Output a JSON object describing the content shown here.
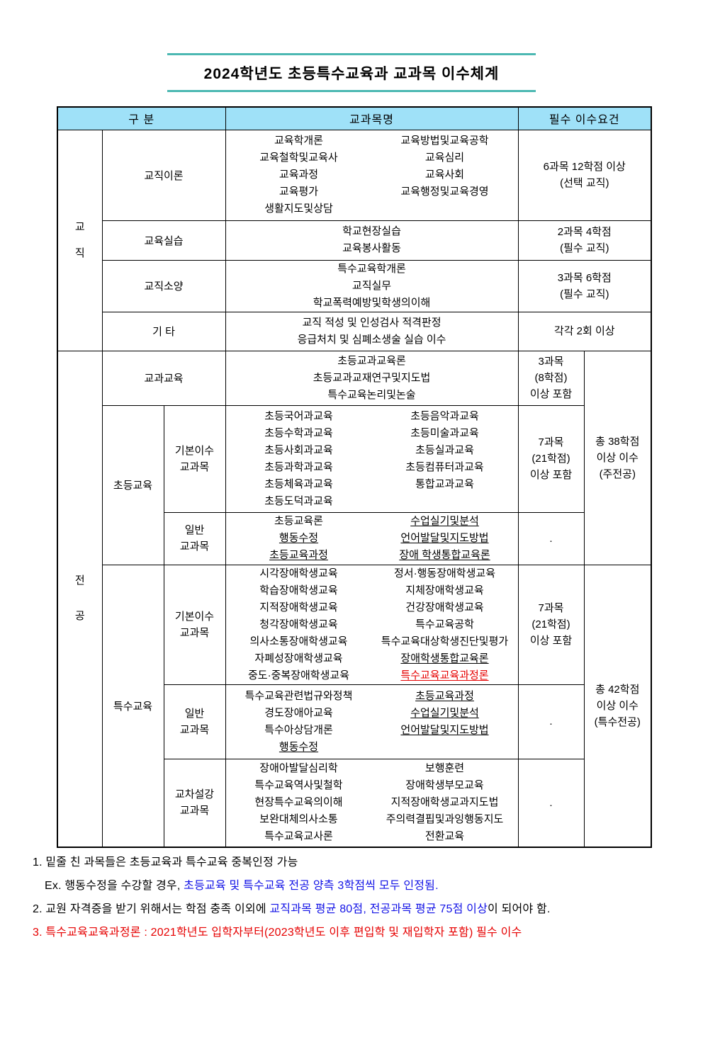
{
  "title": "2024학년도 초등특수교육과 교과목 이수체계",
  "colors": {
    "title_rule": "#4cb8b2",
    "header_bg": "#9fe1f8",
    "highlight_blue": "#1212e6",
    "highlight_red": "#e60000"
  },
  "table": {
    "headers": {
      "category": "구  분",
      "course": "교과목명",
      "requirement": "필수 이수요건"
    },
    "groups": {
      "teaching": "교\n직",
      "major": "전\n공"
    },
    "rows": {
      "theory": {
        "label": "교직이론",
        "left": [
          {
            "t": "교육학개론"
          },
          {
            "t": "교육철학및교육사"
          },
          {
            "t": "교육과정"
          },
          {
            "t": "교육평가"
          },
          {
            "t": "생활지도및상담"
          }
        ],
        "right": [
          {
            "t": "교육방법및교육공학"
          },
          {
            "t": "교육심리"
          },
          {
            "t": "교육사회"
          },
          {
            "t": "교육행정및교육경영"
          }
        ],
        "req": "6과목 12학점 이상\n(선택 교직)"
      },
      "practice": {
        "label": "교육실습",
        "center": [
          {
            "t": "학교현장실습"
          },
          {
            "t": "교육봉사활동"
          }
        ],
        "req": "2과목 4학점\n(필수 교직)"
      },
      "ethics": {
        "label": "교직소양",
        "center": [
          {
            "t": "특수교육학개론"
          },
          {
            "t": "교직실무"
          },
          {
            "t": "학교폭력예방및학생의이해"
          }
        ],
        "req": "3과목 6학점\n(필수 교직)"
      },
      "etc": {
        "label": "기  타",
        "center": [
          {
            "t": "교직 적성 및 인성검사 적격판정"
          },
          {
            "t": "응급처치 및 심폐소생술 실습 이수"
          }
        ],
        "req": "각각 2회 이상"
      },
      "subject_edu": {
        "label": "교과교육",
        "center": [
          {
            "t": "초등교과교육론"
          },
          {
            "t": "초등교과교재연구및지도법"
          },
          {
            "t": "특수교육논리및논술"
          }
        ],
        "req": "3과목\n(8학점)\n이상 포함"
      },
      "elem": {
        "label": "초등교육"
      },
      "elem_basic": {
        "label": "기본이수\n교과목",
        "left": [
          {
            "t": "초등국어과교육"
          },
          {
            "t": "초등수학과교육"
          },
          {
            "t": "초등사회과교육"
          },
          {
            "t": "초등과학과교육"
          },
          {
            "t": "초등체육과교육"
          },
          {
            "t": "초등도덕과교육"
          }
        ],
        "right": [
          {
            "t": "초등음악과교육"
          },
          {
            "t": "초등미술과교육"
          },
          {
            "t": "초등실과교육"
          },
          {
            "t": "초등컴퓨터과교육"
          },
          {
            "t": "통합교과교육"
          }
        ],
        "req": "7과목\n(21학점)\n이상 포함"
      },
      "elem_general": {
        "label": "일반\n교과목",
        "left": [
          {
            "t": "초등교육론"
          },
          {
            "t": "행동수정",
            "u": true
          },
          {
            "t": "초등교육과정",
            "u": true
          }
        ],
        "right": [
          {
            "t": "수업실기및분석",
            "u": true
          },
          {
            "t": "언어발달및지도방법",
            "u": true
          },
          {
            "t": "장애 학생통합교육론",
            "u": true
          }
        ],
        "req": "."
      },
      "special": {
        "label": "특수교육"
      },
      "special_basic": {
        "label": "기본이수\n교과목",
        "left": [
          {
            "t": "시각장애학생교육"
          },
          {
            "t": "학습장애학생교육"
          },
          {
            "t": "지적장애학생교육"
          },
          {
            "t": "청각장애학생교육"
          },
          {
            "t": "의사소통장애학생교육"
          },
          {
            "t": "자폐성장애학생교육"
          },
          {
            "t": "중도·중복장애학생교육"
          }
        ],
        "right": [
          {
            "t": "정서·행동장애학생교육"
          },
          {
            "t": "지체장애학생교육"
          },
          {
            "t": "건강장애학생교육"
          },
          {
            "t": "특수교육공학"
          },
          {
            "t": "특수교육대상학생진단및평가"
          },
          {
            "t": "장애학생통합교육론",
            "u": true
          },
          {
            "t": "특수교육교육과정론",
            "u": true,
            "r": true
          }
        ],
        "req": "7과목\n(21학점)\n이상 포함"
      },
      "special_general": {
        "label": "일반\n교과목",
        "left": [
          {
            "t": "특수교육관련법규와정책"
          },
          {
            "t": "경도장애아교육"
          },
          {
            "t": "특수아상담개론"
          },
          {
            "t": "행동수정",
            "u": true
          }
        ],
        "right": [
          {
            "t": "초등교육과정",
            "u": true
          },
          {
            "t": "수업실기및분석",
            "u": true
          },
          {
            "t": "언어발달및지도방법",
            "u": true
          }
        ],
        "req": "."
      },
      "cross": {
        "label": "교차설강\n교과목",
        "left": [
          {
            "t": "장애아발달심리학"
          },
          {
            "t": "특수교육역사및철학"
          },
          {
            "t": "현장특수교육의이해"
          },
          {
            "t": "보완대체의사소통"
          },
          {
            "t": "특수교육교사론"
          }
        ],
        "right": [
          {
            "t": "보행훈련"
          },
          {
            "t": "장애학생부모교육"
          },
          {
            "t": "지적장애학생교과지도법"
          },
          {
            "t": "주의력결핍및과잉행동지도"
          },
          {
            "t": "전환교육"
          }
        ],
        "req": "."
      },
      "total_main": "총 38학점\n이상 이수\n(주전공)",
      "total_special": "총 42학점\n이상 이수\n(특수전공)"
    }
  },
  "footnotes": {
    "n1": "1. 밑줄 친 과목들은 초등교육과 특수교육 중복인정 가능",
    "ex_black": "Ex. 행동수정을 수강할 경우, ",
    "ex_blue": "초등교육 및 특수교육 전공 양측 3학점씩 모두 인정됨.",
    "n2_black1": "2. 교원 자격증을 받기 위해서는 학점 충족 이외에 ",
    "n2_blue": "교직과목 평균 80점, 전공과목 평균 75점 이상",
    "n2_black2": "이 되어야 함.",
    "n3": "3. 특수교육교육과정론 : 2021학년도 입학자부터(2023학년도 이후 편입학 및 재입학자 포함) 필수 이수"
  }
}
